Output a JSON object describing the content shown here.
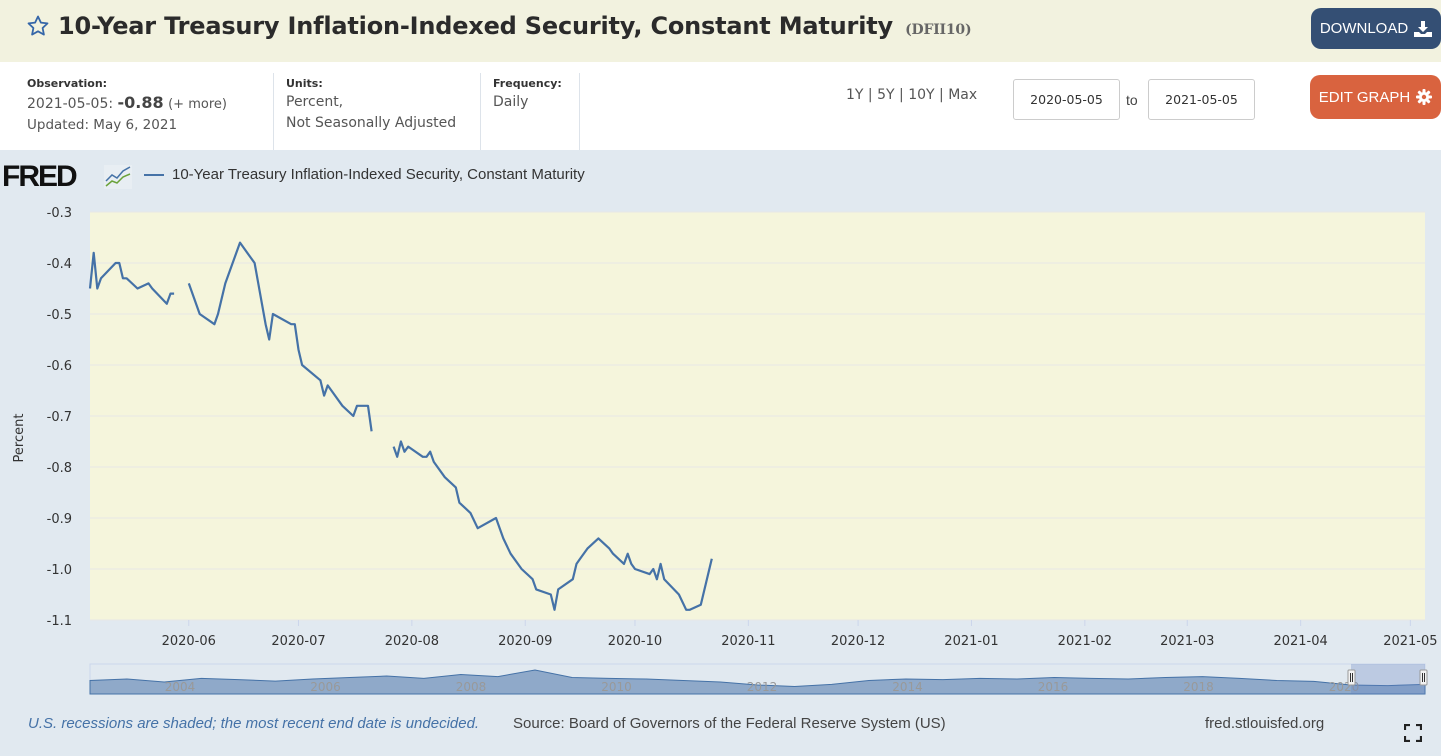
{
  "header": {
    "title": "10-Year Treasury Inflation-Indexed Security, Constant Maturity",
    "series_id": "(DFII10)",
    "download_label": "DOWNLOAD",
    "edit_graph_label": "EDIT GRAPH",
    "download_color": "#344f74",
    "edit_color": "#d9633f"
  },
  "meta": {
    "observation_label": "Observation:",
    "observation_date": "2021-05-05:",
    "observation_value": "-0.88",
    "observation_more": "(+ more)",
    "updated": "Updated: May 6, 2021",
    "units_label": "Units:",
    "units_line1": "Percent,",
    "units_line2": "Not Seasonally Adjusted",
    "frequency_label": "Frequency:",
    "frequency_value": "Daily"
  },
  "range": {
    "links": [
      "1Y",
      "5Y",
      "10Y",
      "Max"
    ],
    "separator": "|",
    "start": "2020-05-05",
    "to_label": "to",
    "end": "2021-05-05"
  },
  "chart_data": {
    "type": "line",
    "title": "",
    "logo": "FRED",
    "legend": [
      "10-Year Treasury Inflation-Indexed Security, Constant Maturity"
    ],
    "legend_placement": "top-left",
    "xlabel": "",
    "ylabel": "Percent",
    "ylim": [
      -1.1,
      -0.3
    ],
    "yticks": [
      -0.3,
      -0.4,
      -0.5,
      -0.6,
      -0.7,
      -0.8,
      -0.9,
      -1.0,
      -1.1
    ],
    "ytick_labels": [
      "-0.3",
      "-0.4",
      "-0.5",
      "-0.6",
      "-0.7",
      "-0.8",
      "-0.9",
      "-1.0",
      "-1.1"
    ],
    "xlim": [
      "2020-05-05",
      "2021-05-05"
    ],
    "xtick_labels": [
      "2020-06",
      "2020-07",
      "2020-08",
      "2020-09",
      "2020-10",
      "2020-11",
      "2020-12",
      "2021-01",
      "2021-02",
      "2021-03",
      "2021-04",
      "2021-05"
    ],
    "grid": true,
    "line_color": "#4572a7",
    "plot_bg": "#f5f5dc",
    "series": [
      {
        "name": "DFII10",
        "segments": [
          [
            [
              "2020-05-05",
              -0.45
            ],
            [
              "2020-05-06",
              -0.38
            ],
            [
              "2020-05-07",
              -0.45
            ],
            [
              "2020-05-08",
              -0.43
            ],
            [
              "2020-05-12",
              -0.4
            ],
            [
              "2020-05-13",
              -0.4
            ],
            [
              "2020-05-14",
              -0.43
            ],
            [
              "2020-05-15",
              -0.43
            ],
            [
              "2020-05-18",
              -0.45
            ],
            [
              "2020-05-21",
              -0.44
            ],
            [
              "2020-05-22",
              -0.45
            ],
            [
              "2020-05-26",
              -0.48
            ],
            [
              "2020-05-27",
              -0.46
            ],
            [
              "2020-05-28",
              -0.46
            ]
          ],
          [
            [
              "2020-06-01",
              -0.44
            ],
            [
              "2020-06-04",
              -0.5
            ],
            [
              "2020-06-08",
              -0.52
            ],
            [
              "2020-06-09",
              -0.5
            ],
            [
              "2020-06-11",
              -0.44
            ],
            [
              "2020-06-15",
              -0.36
            ],
            [
              "2020-06-18",
              -0.39
            ],
            [
              "2020-06-19",
              -0.4
            ],
            [
              "2020-06-22",
              -0.52
            ],
            [
              "2020-06-23",
              -0.55
            ],
            [
              "2020-06-24",
              -0.5
            ],
            [
              "2020-06-29",
              -0.52
            ],
            [
              "2020-06-30",
              -0.52
            ],
            [
              "2020-07-01",
              -0.57
            ],
            [
              "2020-07-02",
              -0.6
            ],
            [
              "2020-07-07",
              -0.63
            ],
            [
              "2020-07-08",
              -0.66
            ],
            [
              "2020-07-09",
              -0.64
            ],
            [
              "2020-07-10",
              -0.65
            ],
            [
              "2020-07-13",
              -0.68
            ],
            [
              "2020-07-16",
              -0.7
            ],
            [
              "2020-07-17",
              -0.68
            ],
            [
              "2020-07-20",
              -0.68
            ],
            [
              "2020-07-21",
              -0.73
            ]
          ],
          [
            [
              "2020-07-27",
              -0.76
            ],
            [
              "2020-07-28",
              -0.78
            ],
            [
              "2020-07-29",
              -0.75
            ],
            [
              "2020-07-30",
              -0.77
            ],
            [
              "2020-07-31",
              -0.76
            ],
            [
              "2020-08-04",
              -0.78
            ],
            [
              "2020-08-05",
              -0.78
            ],
            [
              "2020-08-06",
              -0.77
            ],
            [
              "2020-08-07",
              -0.79
            ],
            [
              "2020-08-10",
              -0.82
            ],
            [
              "2020-08-13",
              -0.84
            ],
            [
              "2020-08-14",
              -0.87
            ],
            [
              "2020-08-17",
              -0.89
            ],
            [
              "2020-08-19",
              -0.92
            ],
            [
              "2020-08-24",
              -0.9
            ],
            [
              "2020-08-26",
              -0.94
            ],
            [
              "2020-08-28",
              -0.97
            ],
            [
              "2020-08-31",
              -1.0
            ],
            [
              "2020-09-03",
              -1.02
            ],
            [
              "2020-09-04",
              -1.04
            ],
            [
              "2020-09-08",
              -1.05
            ],
            [
              "2020-09-09",
              -1.08
            ],
            [
              "2020-09-10",
              -1.04
            ],
            [
              "2020-09-14",
              -1.02
            ],
            [
              "2020-09-15",
              -0.99
            ],
            [
              "2020-09-16",
              -0.98
            ],
            [
              "2020-09-18",
              -0.96
            ],
            [
              "2020-09-21",
              -0.94
            ],
            [
              "2020-09-24",
              -0.96
            ],
            [
              "2020-09-25",
              -0.97
            ],
            [
              "2020-09-28",
              -0.99
            ],
            [
              "2020-09-29",
              -0.97
            ],
            [
              "2020-09-30",
              -0.99
            ],
            [
              "2020-10-01",
              -1.0
            ],
            [
              "2020-10-05",
              -1.01
            ],
            [
              "2020-10-06",
              -1.0
            ],
            [
              "2020-10-07",
              -1.02
            ],
            [
              "2020-10-08",
              -0.99
            ],
            [
              "2020-10-09",
              -1.02
            ],
            [
              "2020-10-13",
              -1.05
            ],
            [
              "2020-10-15",
              -1.08
            ],
            [
              "2020-10-16",
              -1.08
            ],
            [
              "2020-10-19",
              -1.07
            ],
            [
              "2020-10-22",
              -0.98
            ]
          ]
        ]
      }
    ]
  },
  "navigator": {
    "year_labels": [
      "2004",
      "2006",
      "2008",
      "2010",
      "2012",
      "2014",
      "2016",
      "2018",
      "2020"
    ],
    "selection_start": "2020-05-05",
    "selection_end": "2021-05-05"
  },
  "footer": {
    "recession_note": "U.S. recessions are shaded; the most recent end date is undecided.",
    "source": "Source: Board of Governors of the Federal Reserve System (US)",
    "site": "fred.stlouisfed.org"
  }
}
